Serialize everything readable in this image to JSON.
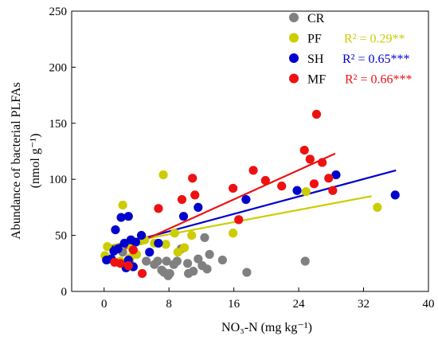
{
  "chart_data": {
    "type": "scatter",
    "title": "",
    "xlabel": "NO₃-N (mg kg⁻¹)",
    "ylabel_line1": "Abundance of bacterial PLFAs",
    "ylabel_line2": "(nmol g⁻¹)",
    "xlim": [
      -4,
      40
    ],
    "ylim": [
      0,
      250
    ],
    "xticks": [
      0,
      8,
      16,
      24,
      32,
      40
    ],
    "yticks": [
      0,
      50,
      100,
      150,
      200,
      250
    ],
    "xtick_labels": [
      "0",
      "8",
      "16",
      "24",
      "32",
      "40"
    ],
    "ytick_labels": [
      "0",
      "50",
      "100",
      "150",
      "200",
      "250"
    ],
    "grid": false,
    "legend_position": "top-right",
    "series": [
      {
        "name": "CR",
        "color": "#808080",
        "r2_label": "",
        "points": [
          [
            0.2,
            31
          ],
          [
            0.6,
            29
          ],
          [
            2.3,
            35
          ],
          [
            3.1,
            27
          ],
          [
            5.2,
            27
          ],
          [
            6.2,
            24
          ],
          [
            6.6,
            27
          ],
          [
            7.1,
            19
          ],
          [
            7.7,
            27
          ],
          [
            7.4,
            17
          ],
          [
            7.9,
            14
          ],
          [
            8.1,
            16
          ],
          [
            8.6,
            24
          ],
          [
            9.0,
            27
          ],
          [
            9.5,
            38
          ],
          [
            10.3,
            25
          ],
          [
            10.4,
            16
          ],
          [
            11.0,
            18
          ],
          [
            11.6,
            29
          ],
          [
            12.1,
            23
          ],
          [
            12.4,
            48
          ],
          [
            12.7,
            20
          ],
          [
            13.0,
            33
          ],
          [
            14.6,
            28
          ],
          [
            17.6,
            17
          ],
          [
            24.8,
            27
          ]
        ],
        "trend": null
      },
      {
        "name": "PF",
        "color": "#cccc00",
        "r2_label": "R² = 0.29**",
        "points": [
          [
            0.1,
            32
          ],
          [
            0.4,
            40
          ],
          [
            1.6,
            38
          ],
          [
            2.0,
            27
          ],
          [
            2.3,
            77
          ],
          [
            3.2,
            30
          ],
          [
            3.4,
            39
          ],
          [
            4.0,
            33
          ],
          [
            4.5,
            45
          ],
          [
            5.0,
            46
          ],
          [
            6.2,
            43
          ],
          [
            7.3,
            104
          ],
          [
            7.6,
            42
          ],
          [
            8.7,
            52
          ],
          [
            9.1,
            35
          ],
          [
            9.9,
            39
          ],
          [
            10.8,
            50
          ],
          [
            15.9,
            52
          ],
          [
            24.9,
            89
          ],
          [
            33.7,
            75
          ]
        ],
        "trend": [
          [
            0,
            40
          ],
          [
            33,
            85
          ]
        ]
      },
      {
        "name": "SH",
        "color": "#0000cc",
        "r2_label": "R² = 0.65***",
        "points": [
          [
            0.3,
            28
          ],
          [
            0.9,
            29
          ],
          [
            1.2,
            36
          ],
          [
            1.4,
            55
          ],
          [
            1.7,
            38
          ],
          [
            2.1,
            66
          ],
          [
            2.5,
            43
          ],
          [
            2.7,
            21
          ],
          [
            3.0,
            28
          ],
          [
            3.0,
            67
          ],
          [
            3.3,
            46
          ],
          [
            3.6,
            22
          ],
          [
            3.9,
            44
          ],
          [
            4.6,
            50
          ],
          [
            5.6,
            35
          ],
          [
            6.7,
            43
          ],
          [
            9.8,
            67
          ],
          [
            11.6,
            75
          ],
          [
            17.5,
            82
          ],
          [
            23.8,
            90
          ],
          [
            28.6,
            104
          ],
          [
            35.9,
            86
          ]
        ],
        "trend": [
          [
            0,
            38
          ],
          [
            36,
            108
          ]
        ]
      },
      {
        "name": "MF",
        "color": "#ee1111",
        "r2_label": "R² = 0.66***",
        "points": [
          [
            1.3,
            26
          ],
          [
            2.0,
            25
          ],
          [
            3.0,
            23
          ],
          [
            3.6,
            37
          ],
          [
            4.7,
            16
          ],
          [
            6.7,
            74
          ],
          [
            9.6,
            82
          ],
          [
            10.9,
            101
          ],
          [
            11.2,
            86
          ],
          [
            15.9,
            92
          ],
          [
            16.6,
            64
          ],
          [
            18.4,
            108
          ],
          [
            19.9,
            99
          ],
          [
            21.9,
            94
          ],
          [
            24.7,
            126
          ],
          [
            25.4,
            118
          ],
          [
            25.9,
            96
          ],
          [
            26.2,
            158
          ],
          [
            26.9,
            115
          ],
          [
            28.2,
            90
          ],
          [
            27.7,
            101
          ]
        ],
        "trend": [
          [
            1,
            33
          ],
          [
            28.5,
            123
          ]
        ]
      }
    ]
  }
}
